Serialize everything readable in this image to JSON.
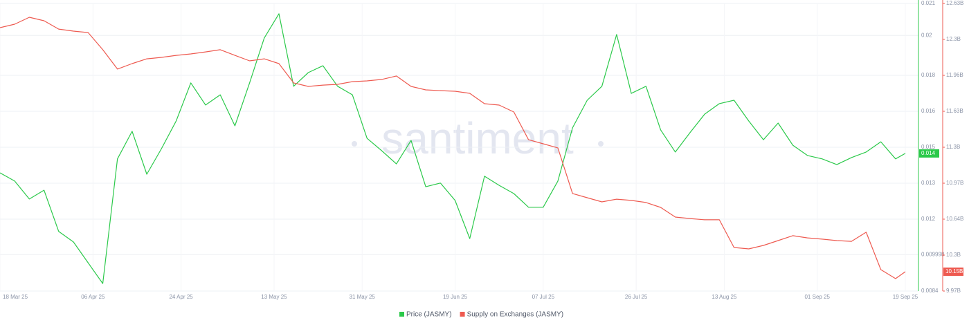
{
  "chart_data": {
    "type": "line",
    "watermark": "santiment",
    "x": [
      "2025-03-18",
      "2025-03-21",
      "2025-03-24",
      "2025-03-27",
      "2025-03-30",
      "2025-04-02",
      "2025-04-05",
      "2025-04-08",
      "2025-04-11",
      "2025-04-14",
      "2025-04-17",
      "2025-04-20",
      "2025-04-23",
      "2025-04-26",
      "2025-04-29",
      "2025-05-02",
      "2025-05-05",
      "2025-05-08",
      "2025-05-11",
      "2025-05-14",
      "2025-05-17",
      "2025-05-20",
      "2025-05-23",
      "2025-05-26",
      "2025-05-29",
      "2025-06-01",
      "2025-06-04",
      "2025-06-07",
      "2025-06-10",
      "2025-06-13",
      "2025-06-16",
      "2025-06-19",
      "2025-06-22",
      "2025-06-25",
      "2025-06-28",
      "2025-07-01",
      "2025-07-04",
      "2025-07-07",
      "2025-07-10",
      "2025-07-13",
      "2025-07-16",
      "2025-07-19",
      "2025-07-22",
      "2025-07-25",
      "2025-07-28",
      "2025-07-31",
      "2025-08-03",
      "2025-08-06",
      "2025-08-09",
      "2025-08-12",
      "2025-08-15",
      "2025-08-18",
      "2025-08-21",
      "2025-08-24",
      "2025-08-27",
      "2025-08-30",
      "2025-09-02",
      "2025-09-05",
      "2025-09-08",
      "2025-09-11",
      "2025-09-14",
      "2025-09-17",
      "2025-09-19"
    ],
    "xlim": [
      "2025-03-18",
      "2025-09-19"
    ],
    "xticks": [
      {
        "value": "2025-03-18",
        "label": "18 Mar 25"
      },
      {
        "value": "2025-04-06",
        "label": "06 Apr 25"
      },
      {
        "value": "2025-04-24",
        "label": "24 Apr 25"
      },
      {
        "value": "2025-05-13",
        "label": "13 May 25"
      },
      {
        "value": "2025-05-31",
        "label": "31 May 25"
      },
      {
        "value": "2025-06-19",
        "label": "19 Jun 25"
      },
      {
        "value": "2025-07-07",
        "label": "07 Jul 25"
      },
      {
        "value": "2025-07-26",
        "label": "26 Jul 25"
      },
      {
        "value": "2025-08-13",
        "label": "13 Aug 25"
      },
      {
        "value": "2025-09-01",
        "label": "01 Sep 25"
      },
      {
        "value": "2025-09-19",
        "label": "19 Sep 25"
      }
    ],
    "ylim": [
      0.0084,
      0.021
    ],
    "yticks": [
      0.0084,
      {
        "value": 0.009998,
        "label": "0.009998"
      },
      {
        "value": 0.01155,
        "label": "0.012"
      },
      {
        "value": 0.013125,
        "label": "0.013"
      },
      {
        "value": 0.0147,
        "label": "0.015"
      },
      {
        "value": 0.016275,
        "label": "0.016"
      },
      {
        "value": 0.01785,
        "label": "0.018"
      },
      {
        "value": 0.0196,
        "label": "0.02"
      },
      0.021
    ],
    "y2lim": [
      9970000000,
      12630000000
    ],
    "y2ticks": [
      {
        "value": 9970000000,
        "label": "9.97B"
      },
      {
        "value": 10302500000,
        "label": "10.3B"
      },
      {
        "value": 10635000000,
        "label": "10.64B"
      },
      {
        "value": 10967500000,
        "label": "10.97B"
      },
      {
        "value": 11300000000,
        "label": "11.3B"
      },
      {
        "value": 11632500000,
        "label": "11.63B"
      },
      {
        "value": 11965000000,
        "label": "11.96B"
      },
      {
        "value": 12297500000,
        "label": "12.3B"
      },
      {
        "value": 12630000000,
        "label": "12.63B"
      }
    ],
    "grid": true,
    "series": [
      {
        "name": "Price (JASMY)",
        "color": "#2bc94a",
        "axis": "y",
        "last_value_label": "0.014",
        "values": [
          0.01358,
          0.01322,
          0.01243,
          0.01282,
          0.01101,
          0.01055,
          0.00964,
          0.00873,
          0.01419,
          0.0154,
          0.01352,
          0.01464,
          0.01585,
          0.01752,
          0.01655,
          0.017,
          0.01564,
          0.01752,
          0.01949,
          0.02055,
          0.01737,
          0.01797,
          0.01827,
          0.01737,
          0.017,
          0.01509,
          0.01455,
          0.01397,
          0.015,
          0.01297,
          0.01313,
          0.01237,
          0.0107,
          0.01343,
          0.01303,
          0.01267,
          0.01207,
          0.01207,
          0.01322,
          0.01555,
          0.01676,
          0.01737,
          0.01964,
          0.01706,
          0.01737,
          0.01546,
          0.01449,
          0.01534,
          0.01615,
          0.01661,
          0.01676,
          0.01585,
          0.01503,
          0.01576,
          0.01479,
          0.01434,
          0.01419,
          0.01394,
          0.01425,
          0.01449,
          0.01494,
          0.01419,
          0.01443
        ]
      },
      {
        "name": "Supply on Exchanges (JASMY)",
        "color": "#ee5a50",
        "axis": "y2",
        "last_value_label": "10.15B",
        "values": [
          12406000000,
          12438000000,
          12502000000,
          12470000000,
          12393000000,
          12374000000,
          12361000000,
          12202000000,
          12023000000,
          12074000000,
          12118000000,
          12131000000,
          12150000000,
          12163000000,
          12182000000,
          12202000000,
          12150000000,
          12099000000,
          12118000000,
          12074000000,
          11895000000,
          11863000000,
          11875000000,
          11882000000,
          11907000000,
          11914000000,
          11927000000,
          11959000000,
          11863000000,
          11831000000,
          11824000000,
          11818000000,
          11799000000,
          11703000000,
          11690000000,
          11626000000,
          11370000000,
          11332000000,
          11294000000,
          10872000000,
          10833000000,
          10795000000,
          10820000000,
          10808000000,
          10789000000,
          10744000000,
          10654000000,
          10641000000,
          10629000000,
          10629000000,
          10373000000,
          10360000000,
          10392000000,
          10437000000,
          10482000000,
          10462000000,
          10450000000,
          10437000000,
          10430000000,
          10514000000,
          10168000000,
          10085000000,
          10149000000
        ]
      }
    ]
  }
}
